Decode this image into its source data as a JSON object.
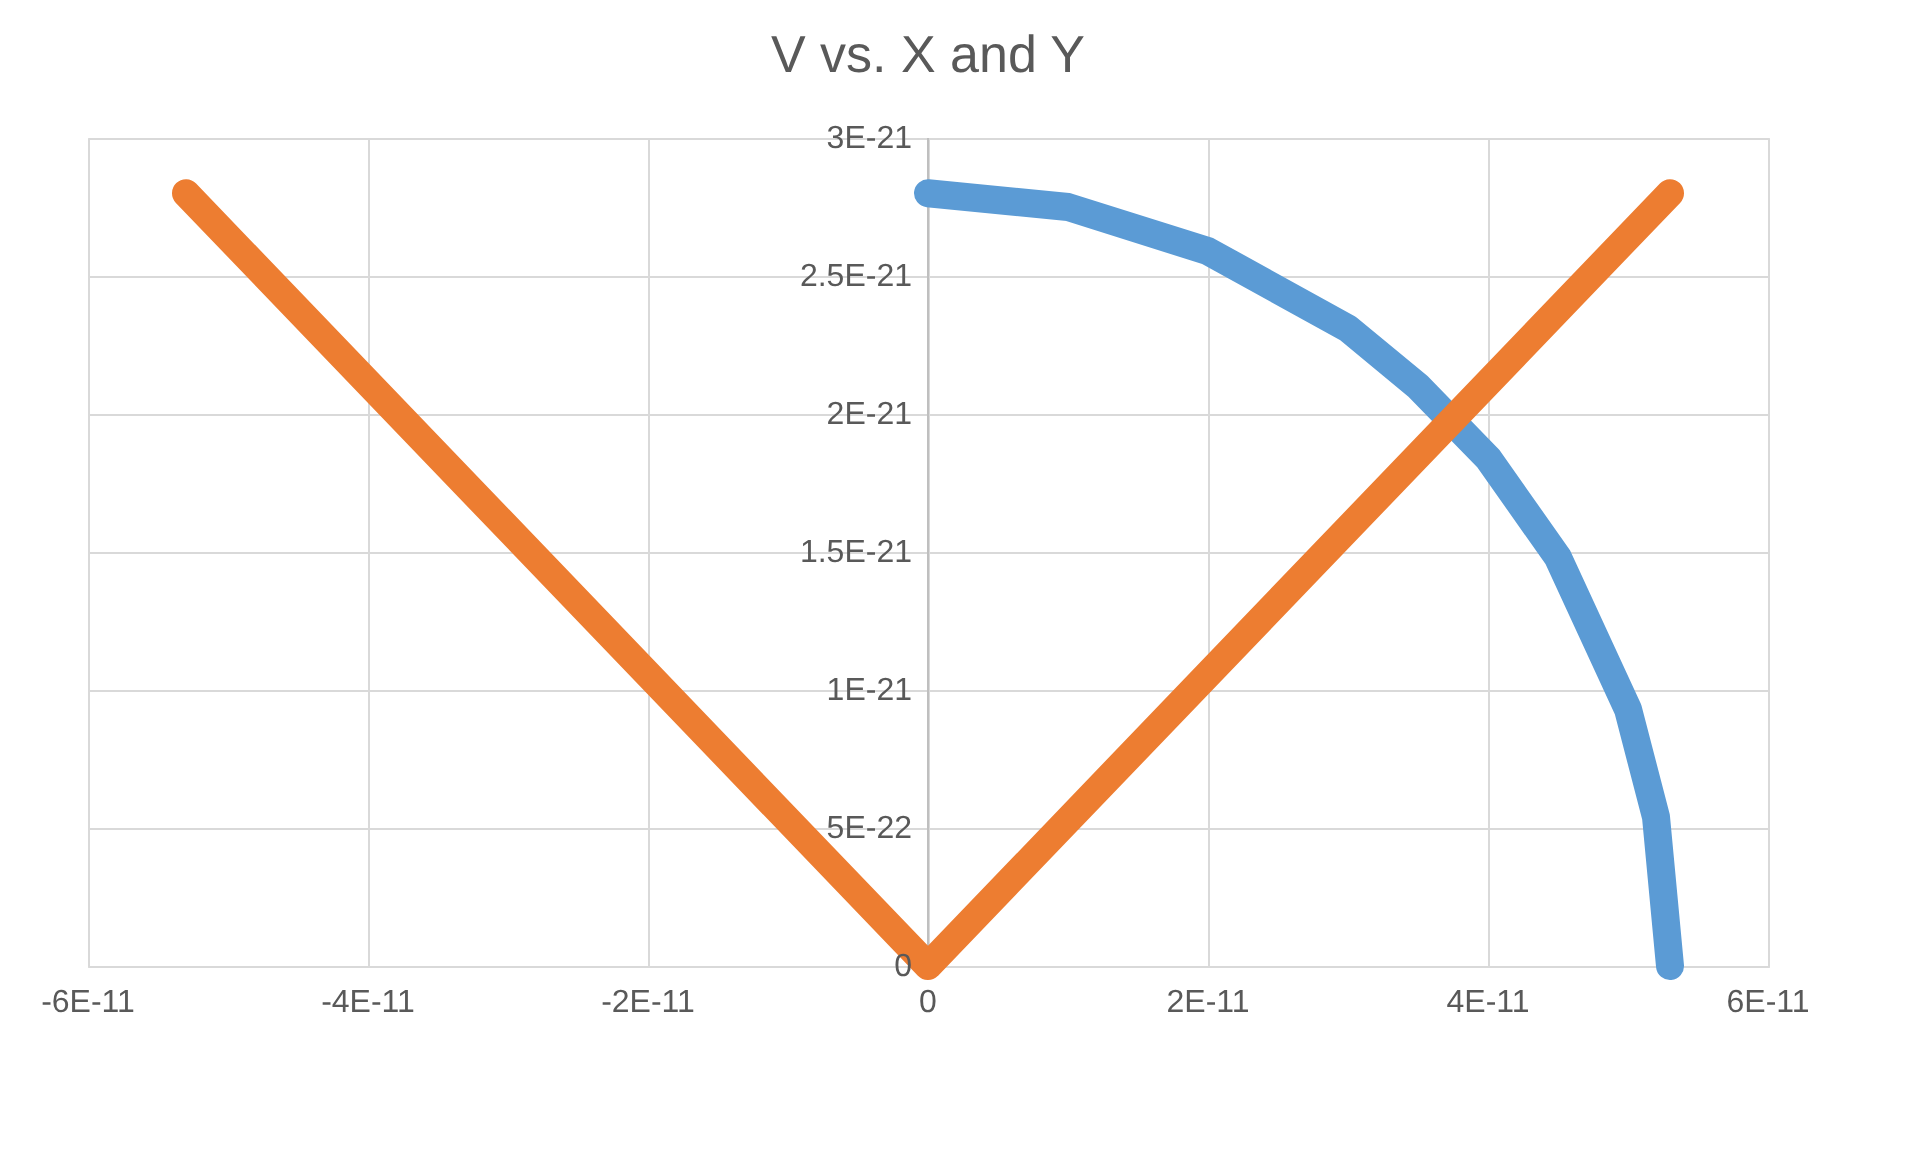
{
  "chart_data": {
    "type": "line",
    "title": "V vs. X and Y",
    "series": [
      {
        "color": "#5b9bd5",
        "x": [
          0,
          1e-11,
          2e-11,
          3e-11,
          3.5e-11,
          4e-11,
          4.5e-11,
          5e-11,
          5.2e-11,
          5.3e-11
        ],
        "values": [
          2.8e-21,
          2.75e-21,
          2.59e-21,
          2.31e-21,
          2.1e-21,
          1.84e-21,
          1.48e-21,
          9.3e-22,
          5.4e-22,
          0
        ]
      },
      {
        "color": "#ed7d31",
        "x": [
          -5.3e-11,
          0,
          5.3e-11
        ],
        "values": [
          2.8e-21,
          0,
          2.8e-21
        ]
      }
    ],
    "xlim": [
      -6e-11,
      6e-11
    ],
    "xticks": [
      {
        "value": -6e-11,
        "label": "-6E-11"
      },
      {
        "value": -4e-11,
        "label": "-4E-11"
      },
      {
        "value": -2e-11,
        "label": "-2E-11"
      },
      0,
      {
        "value": 2e-11,
        "label": "2E-11"
      },
      {
        "value": 4e-11,
        "label": "4E-11"
      },
      {
        "value": 6e-11,
        "label": "6E-11"
      }
    ],
    "ylim": [
      0,
      3e-21
    ],
    "yticks": [
      0,
      {
        "value": 5e-22,
        "label": "5E-22"
      },
      {
        "value": 1e-21,
        "label": "1E-21"
      },
      {
        "value": 1.5e-21,
        "label": "1.5E-21"
      },
      {
        "value": 2e-21,
        "label": "2E-21"
      },
      {
        "value": 2.5e-21,
        "label": "2.5E-21"
      },
      {
        "value": 3e-21,
        "label": "3E-21"
      }
    ],
    "grid": true,
    "marker": "none",
    "line_style": "solid",
    "legend": false
  }
}
